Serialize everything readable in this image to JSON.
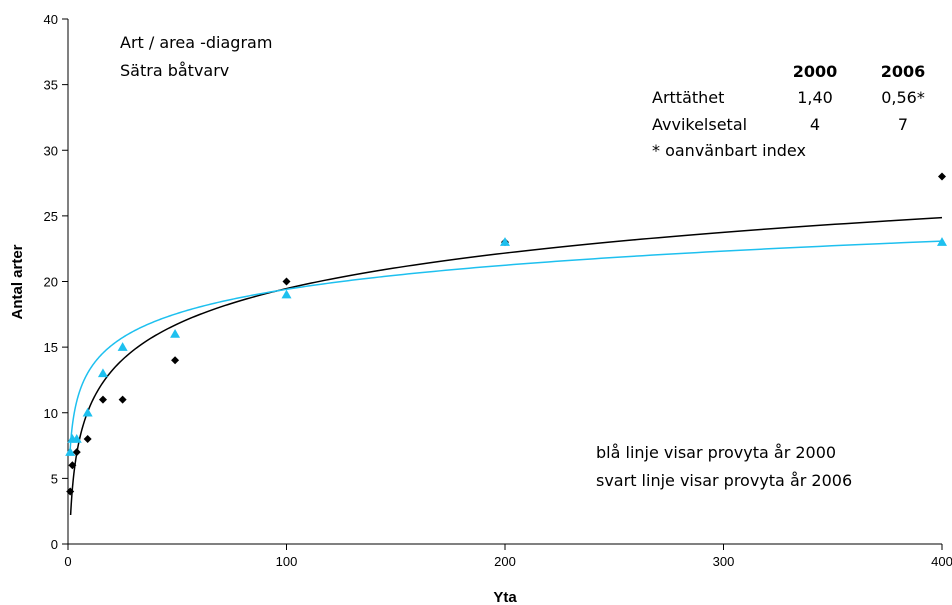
{
  "chart_data": {
    "type": "scatter",
    "xlabel": "Yta",
    "ylabel": "Antal arter",
    "xlim": [
      0,
      400
    ],
    "ylim": [
      0,
      40
    ],
    "x_ticks": [
      "0",
      "100",
      "200",
      "300",
      "400"
    ],
    "y_ticks": [
      "0",
      "5",
      "10",
      "15",
      "20",
      "25",
      "30",
      "35",
      "40"
    ],
    "grid": false,
    "series": [
      {
        "marker": "diamond",
        "color": "#000000",
        "x": [
          1,
          2,
          4,
          9,
          16,
          25,
          49,
          100,
          200,
          400
        ],
        "y": [
          4,
          6,
          7,
          8,
          11,
          11,
          14,
          20,
          23,
          28
        ]
      },
      {
        "marker": "triangle",
        "color": "#1ec0ef",
        "x": [
          1,
          2,
          4,
          9,
          16,
          25,
          49,
          100,
          200,
          400
        ],
        "y": [
          7,
          8,
          8,
          10,
          13,
          15,
          16,
          19,
          23,
          23
        ]
      }
    ],
    "trendlines": [
      {
        "type": "logarithmic",
        "color": "#000000",
        "a": 3.9,
        "b": 1.5,
        "x_range": [
          1.2,
          400
        ]
      },
      {
        "type": "logarithmic",
        "color": "#1ec0ef",
        "a": 2.65,
        "b": 7.2,
        "x_range": [
          1.0,
          400
        ]
      }
    ],
    "annotations": {
      "title_lines": [
        "Art / area -diagram",
        "Sätra båtvarv"
      ],
      "table": {
        "col_headers": [
          "2000",
          "2006"
        ],
        "rows": [
          {
            "label": "Arttäthet",
            "values": [
              "1,40",
              "0,56*"
            ]
          },
          {
            "label": "Avvikelsetal",
            "values": [
              "4",
              "7"
            ]
          }
        ],
        "footnote": "* oanvänbart index"
      },
      "legend_lines": [
        "blå linje visar provyta år 2000",
        "svart linje visar provyta år 2006"
      ]
    }
  }
}
